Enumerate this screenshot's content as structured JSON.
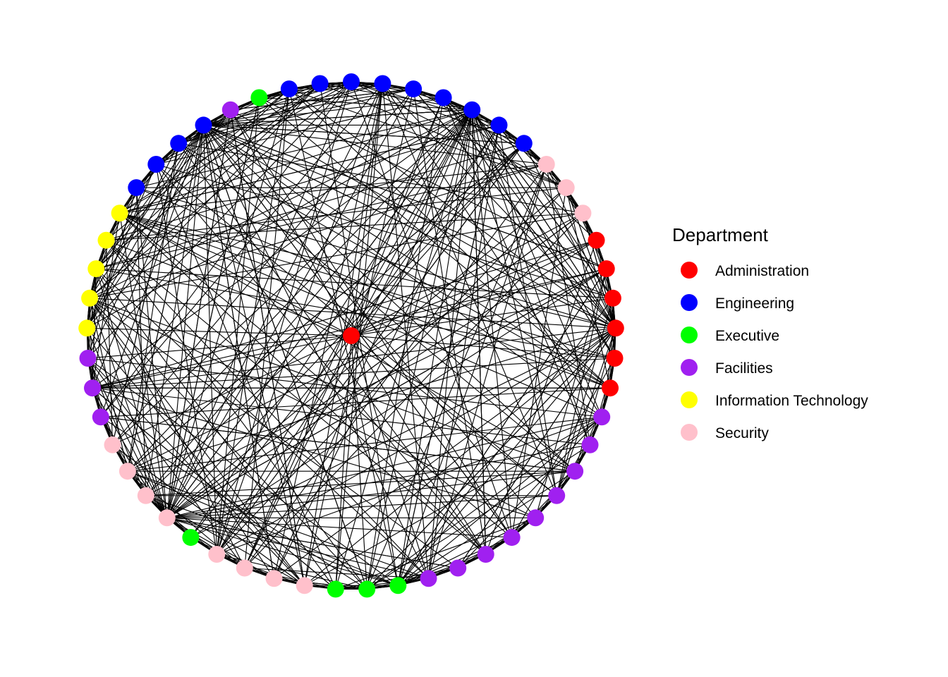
{
  "diagram": {
    "type": "network-circle-layout",
    "legend": {
      "title": "Department",
      "position": "right",
      "entries": [
        {
          "key": "administration",
          "label": "Administration",
          "color": "#ff0000"
        },
        {
          "key": "engineering",
          "label": "Engineering",
          "color": "#0000ff"
        },
        {
          "key": "executive",
          "label": "Executive",
          "color": "#00ff00"
        },
        {
          "key": "facilities",
          "label": "Facilities",
          "color": "#a020f0"
        },
        {
          "key": "information-technology",
          "label": "Information Technology",
          "color": "#ffff00"
        },
        {
          "key": "security",
          "label": "Security",
          "color": "#ffc0cb"
        }
      ]
    },
    "center_node": {
      "department": "administration"
    },
    "ring_nodes": [
      "engineering",
      "engineering",
      "engineering",
      "engineering",
      "engineering",
      "engineering",
      "engineering",
      "security",
      "security",
      "security",
      "administration",
      "administration",
      "administration",
      "administration",
      "administration",
      "administration",
      "facilities",
      "facilities",
      "facilities",
      "facilities",
      "facilities",
      "facilities",
      "facilities",
      "facilities",
      "facilities",
      "executive",
      "executive",
      "executive",
      "security",
      "security",
      "security",
      "security",
      "executive",
      "security",
      "security",
      "security",
      "security",
      "facilities",
      "facilities",
      "facilities",
      "information-technology",
      "information-technology",
      "information-technology",
      "information-technology",
      "information-technology",
      "engineering",
      "engineering",
      "engineering",
      "engineering",
      "facilities",
      "executive",
      "engineering",
      "engineering"
    ]
  }
}
